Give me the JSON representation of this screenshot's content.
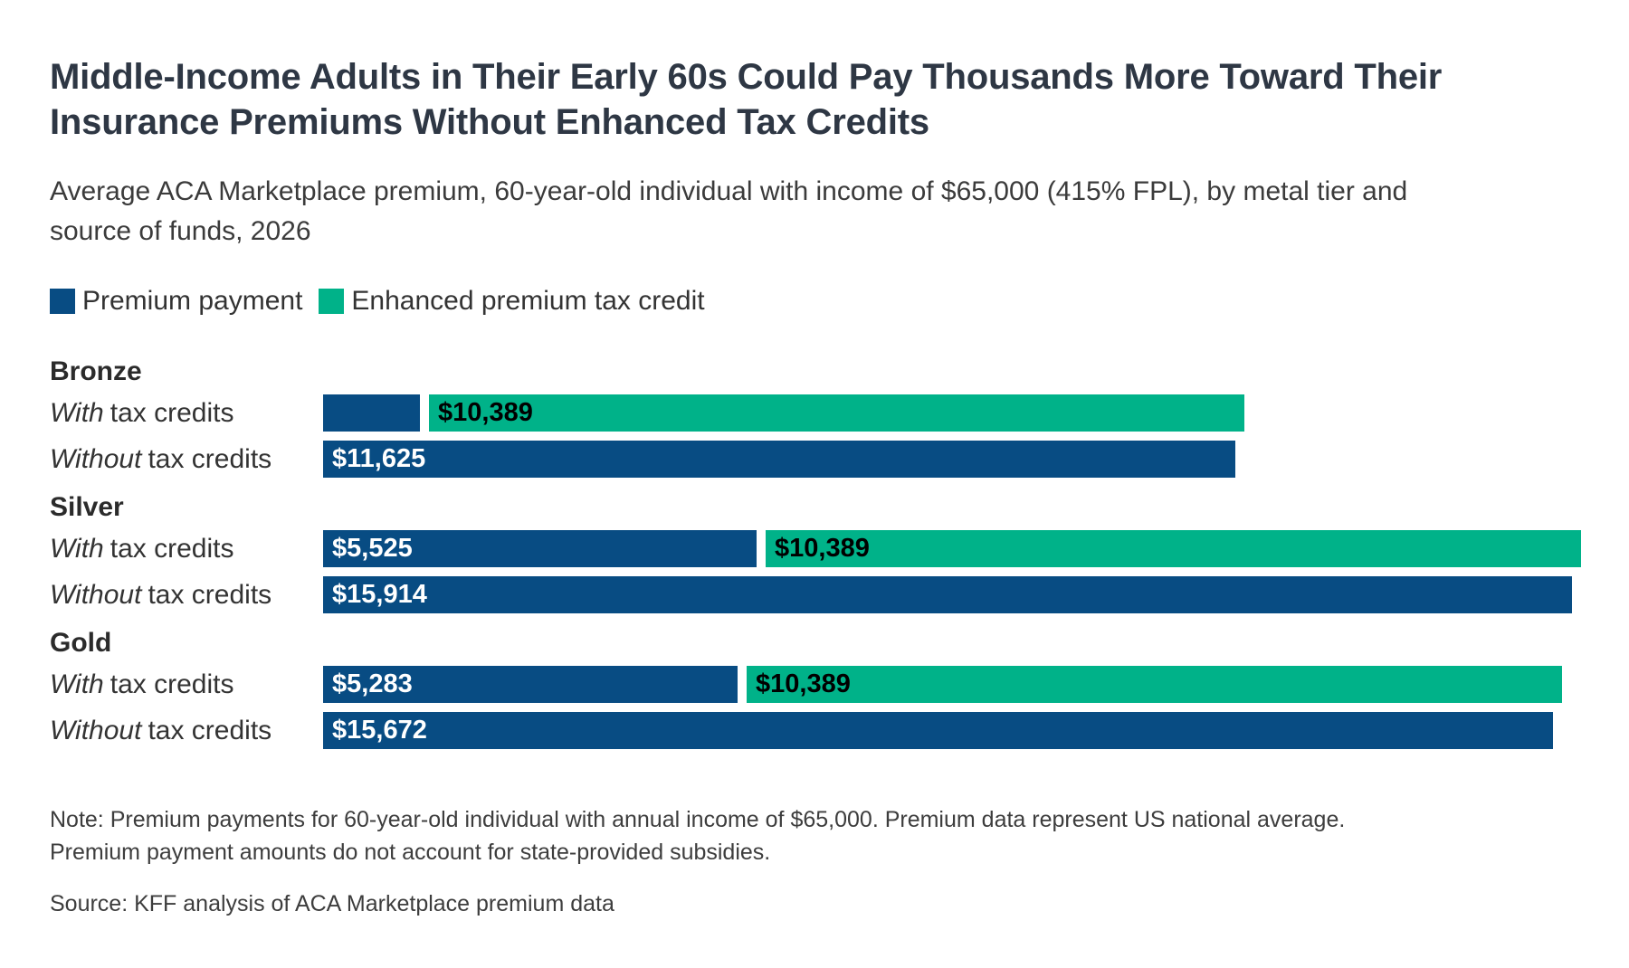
{
  "title": {
    "line1": "Middle-Income Adults in Their Early 60s Could Pay Thousands More Toward Their",
    "line2": "Insurance Premiums Without Enhanced Tax Credits"
  },
  "subtitle": {
    "line1": "Average ACA Marketplace premium, 60-year-old individual with income of $65,000 (415% FPL), by metal tier and",
    "line2": "source of funds, 2026"
  },
  "legend": [
    {
      "label": "Premium payment",
      "color": "#084c83"
    },
    {
      "label": "Enhanced premium tax credit",
      "color": "#00b289"
    }
  ],
  "colors": {
    "premium_payment": "#084c83",
    "enhanced_tax_credit": "#00b289"
  },
  "chart_data": {
    "type": "bar",
    "orientation": "horizontal",
    "unit": "USD",
    "value_axis_max": 16000,
    "grid": false,
    "legend_position": "top",
    "series": [
      {
        "name": "Premium payment",
        "color": "#084c83"
      },
      {
        "name": "Enhanced premium tax credit",
        "color": "#00b289"
      }
    ],
    "groups": [
      {
        "name": "Bronze",
        "rows": [
          {
            "label_em": "With",
            "label_rest": "tax credits",
            "segments": [
              {
                "series": "Premium payment",
                "value": 1236,
                "label": ""
              },
              {
                "series": "Enhanced premium tax credit",
                "value": 10389,
                "label": "$10,389"
              }
            ]
          },
          {
            "label_em": "Without",
            "label_rest": "tax credits",
            "segments": [
              {
                "series": "Premium payment",
                "value": 11625,
                "label": "$11,625"
              }
            ]
          }
        ]
      },
      {
        "name": "Silver",
        "rows": [
          {
            "label_em": "With",
            "label_rest": "tax credits",
            "segments": [
              {
                "series": "Premium payment",
                "value": 5525,
                "label": "$5,525"
              },
              {
                "series": "Enhanced premium tax credit",
                "value": 10389,
                "label": "$10,389"
              }
            ]
          },
          {
            "label_em": "Without",
            "label_rest": "tax credits",
            "segments": [
              {
                "series": "Premium payment",
                "value": 15914,
                "label": "$15,914"
              }
            ]
          }
        ]
      },
      {
        "name": "Gold",
        "rows": [
          {
            "label_em": "With",
            "label_rest": "tax credits",
            "segments": [
              {
                "series": "Premium payment",
                "value": 5283,
                "label": "$5,283"
              },
              {
                "series": "Enhanced premium tax credit",
                "value": 10389,
                "label": "$10,389"
              }
            ]
          },
          {
            "label_em": "Without",
            "label_rest": "tax credits",
            "segments": [
              {
                "series": "Premium payment",
                "value": 15672,
                "label": "$15,672"
              }
            ]
          }
        ]
      }
    ]
  },
  "notes": {
    "line1": "Note: Premium payments for 60-year-old individual with annual income of $65,000. Premium data represent US national average.",
    "line2": "Premium payment amounts do not account for state-provided subsidies.",
    "source": "Source: KFF analysis of ACA Marketplace premium data"
  }
}
